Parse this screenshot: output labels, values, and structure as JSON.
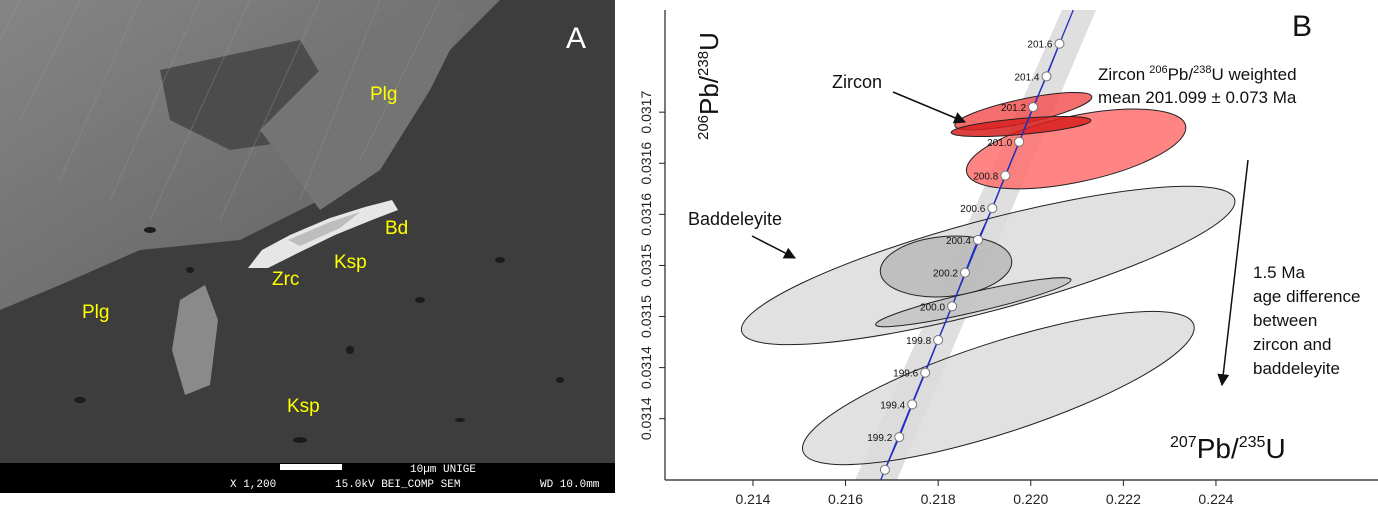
{
  "panel_a": {
    "letter": "A",
    "labels": [
      "Plg",
      "Bd",
      "Zrc",
      "Ksp",
      "Plg",
      "Ksp"
    ],
    "scale_text": "10µm  UNIGE",
    "magnification": "X 1,200",
    "mode": "15.0kV BEI_COMP SEM",
    "working_distance": "WD 10.0mm"
  },
  "chart_data": {
    "type": "concordia",
    "panel_letter": "B",
    "x_label": [
      "207",
      "Pb/",
      "235",
      "U"
    ],
    "y_label": [
      "206",
      "Pb/",
      "238",
      "U"
    ],
    "mean_note": [
      "Zircon",
      "206",
      "Pb/",
      "238",
      "U weighted"
    ],
    "mean_note_line2": "mean 201.099 ± 0.073 Ma",
    "difference_note": [
      "1.5 Ma",
      "age difference",
      "between",
      "zircon and",
      "baddeleyite"
    ],
    "xlim": [
      0.2121,
      0.2275
    ],
    "ylim": [
      0.03134,
      0.0318
    ],
    "xticks": [
      0.214,
      0.216,
      0.218,
      {
        "value": 0.22,
        "label": "0.220"
      },
      0.222,
      0.224
    ],
    "yticks": [
      0.0317,
      {
        "value": 0.03165,
        "label": "0.0316"
      },
      0.0316,
      {
        "value": 0.03155,
        "label": "0.0315"
      },
      0.0315,
      {
        "value": 0.03145,
        "label": "0.0314"
      },
      0.0314
    ],
    "concordia": {
      "color": "#1f2fbf",
      "x": [
        0.22062,
        0.22034,
        0.22005,
        0.21975,
        0.21945,
        0.21917,
        0.21886,
        0.21858,
        0.2183,
        0.218,
        0.21772,
        0.21744,
        0.21716,
        0.21685
      ],
      "y": [
        0.031767,
        0.031735,
        0.031705,
        0.031671,
        0.031638,
        0.031606,
        0.031575,
        0.031543,
        0.03151,
        0.031477,
        0.031445,
        0.031414,
        0.031382,
        0.03135
      ],
      "ages": [
        201.6,
        201.4,
        201.2,
        201.0,
        200.8,
        200.6,
        200.4,
        200.2,
        200.0,
        199.8,
        199.6,
        199.4,
        199.2,
        null
      ],
      "age_labels": [
        "201.6",
        "201.4",
        "201.2",
        "201.0",
        "200.8",
        "200.6",
        "200.4",
        "200.2",
        "200.0",
        "199.8",
        "199.6",
        "199.4",
        "199.2",
        null
      ]
    },
    "series": [
      {
        "name": "Zircon",
        "ellipses": [
          {
            "x": 0.22098,
            "y": 0.031664,
            "x_err": 0.00237,
            "y_err": 3.9e-05,
            "rho": 0.533,
            "color": "#ff6e6e"
          },
          {
            "x": 0.21984,
            "y": 0.031701,
            "x_err": 0.00148,
            "y_err": 1.83e-05,
            "rho": 0.755,
            "color": "#f25555"
          },
          {
            "x": 0.21979,
            "y": 0.031686,
            "x_err": 0.00151,
            "y_err": 9.8e-06,
            "rho": 0.6,
            "color": "#d81e1e"
          }
        ]
      },
      {
        "name": "Baddeleyite",
        "ellipses": [
          {
            "x": 0.21908,
            "y": 0.03155,
            "x_err": 0.00533,
            "y_err": 7.75e-05,
            "rho": 0.808,
            "color": "#dcdcdc"
          },
          {
            "x": 0.2193,
            "y": 0.03143,
            "x_err": 0.00423,
            "y_err": 7.5e-05,
            "rho": 0.786,
            "color": "#dcdcdc"
          },
          {
            "x": 0.21817,
            "y": 0.031549,
            "x_err": 0.00142,
            "y_err": 2.98e-05,
            "rho": 0.15,
            "color": "#b8b8b8"
          },
          {
            "x": 0.21876,
            "y": 0.031514,
            "x_err": 0.00211,
            "y_err": 2.4e-05,
            "rho": 0.908,
            "color": "#c2c2c2"
          }
        ]
      }
    ]
  }
}
